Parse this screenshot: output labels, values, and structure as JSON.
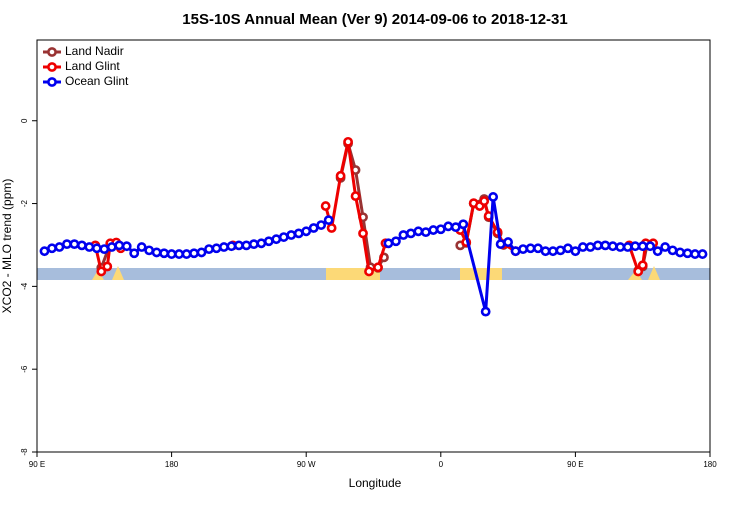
{
  "chart_data": {
    "type": "line",
    "title": "15S-10S Annual Mean (Ver 9)   2014-09-06 to 2018-12-31",
    "x_label": "Longitude",
    "y_label": "XCO2 - MLO trend (ppm)",
    "xlim": [
      90,
      540
    ],
    "ylim": [
      -8,
      1.95
    ],
    "xticks": [
      {
        "value": 90,
        "label": "90 E"
      },
      180,
      {
        "value": 270,
        "label": "90 W"
      },
      {
        "value": 360,
        "label": "0"
      },
      {
        "value": 450,
        "label": "90 E"
      },
      {
        "value": 540,
        "label": "180"
      }
    ],
    "yticks": [
      0,
      -2,
      -4,
      -6,
      -8
    ],
    "legend": "top-left",
    "series": [
      {
        "name": "Land Nadir",
        "color": "#993333",
        "x": [
          133,
          139,
          290,
          293,
          298,
          303,
          308,
          313,
          318,
          322,
          360,
          373,
          377,
          382,
          389,
          392,
          398,
          402,
          450,
          492,
          495,
          498
        ],
        "values": [
          -3.55,
          -2.97,
          null,
          -1.38,
          -0.55,
          -1.19,
          -2.33,
          -3.54,
          -3.55,
          -3.3,
          null,
          -3.01,
          -2.95,
          -2.0,
          -1.89,
          -2.33,
          -2.72,
          -3.0,
          null,
          -3.62,
          -3.52,
          -2.98
        ]
      },
      {
        "name": "Land Glint",
        "color": "#ee0000",
        "x": [
          129,
          133,
          137,
          139,
          143,
          146,
          200,
          221,
          260,
          283,
          287,
          293,
          298,
          303,
          308,
          312,
          318,
          323,
          360,
          373,
          377,
          382,
          386,
          389,
          392,
          398,
          402,
          410,
          450,
          486,
          492,
          495,
          497,
          502
        ],
        "values": [
          -3.01,
          -3.64,
          -3.52,
          -2.96,
          -2.94,
          -3.08,
          null,
          -3.01,
          null,
          -2.06,
          -2.59,
          -1.33,
          -0.51,
          -1.82,
          -2.72,
          -3.64,
          -3.54,
          -2.96,
          null,
          -2.64,
          -2.93,
          -1.99,
          -2.06,
          -1.94,
          -2.3,
          -2.69,
          -2.98,
          -3.15,
          null,
          -3.01,
          -3.64,
          -3.49,
          -2.96,
          -2.96
        ]
      },
      {
        "name": "Ocean Glint",
        "color": "#0000ee",
        "x": [
          95,
          100,
          105,
          110,
          115,
          120,
          125,
          130,
          135,
          140,
          145,
          150,
          155,
          160,
          165,
          170,
          175,
          180,
          185,
          190,
          195,
          200,
          205,
          210,
          215,
          220,
          225,
          230,
          235,
          240,
          245,
          250,
          255,
          260,
          265,
          270,
          275,
          280,
          285,
          300,
          325,
          330,
          335,
          340,
          345,
          350,
          355,
          360,
          365,
          370,
          375,
          390,
          395,
          400,
          405,
          410,
          415,
          420,
          425,
          430,
          435,
          440,
          445,
          450,
          455,
          460,
          465,
          470,
          475,
          480,
          485,
          490,
          495,
          500,
          505,
          510,
          515,
          520,
          525,
          530,
          535
        ],
        "values": [
          -3.15,
          -3.08,
          -3.05,
          -2.98,
          -2.98,
          -3.01,
          -3.05,
          -3.08,
          -3.1,
          -3.05,
          -3.01,
          -3.03,
          -3.2,
          -3.05,
          -3.13,
          -3.18,
          -3.2,
          -3.22,
          -3.22,
          -3.22,
          -3.2,
          -3.18,
          -3.1,
          -3.08,
          -3.05,
          -3.03,
          -3.01,
          -3.01,
          -2.98,
          -2.96,
          -2.91,
          -2.86,
          -2.81,
          -2.76,
          -2.72,
          -2.67,
          -2.59,
          -2.52,
          -2.4,
          null,
          -2.96,
          -2.91,
          -2.76,
          -2.72,
          -2.67,
          -2.69,
          -2.64,
          -2.62,
          -2.55,
          -2.57,
          -2.5,
          -4.61,
          -1.84,
          -2.98,
          -2.93,
          -3.15,
          -3.1,
          -3.08,
          -3.08,
          -3.15,
          -3.15,
          -3.13,
          -3.08,
          -3.15,
          -3.05,
          -3.05,
          -3.01,
          -3.01,
          -3.03,
          -3.05,
          -3.05,
          -3.03,
          -3.03,
          -3.03,
          -3.15,
          -3.05,
          -3.13,
          -3.18,
          -3.2,
          -3.22,
          -3.22
        ]
      }
    ]
  }
}
